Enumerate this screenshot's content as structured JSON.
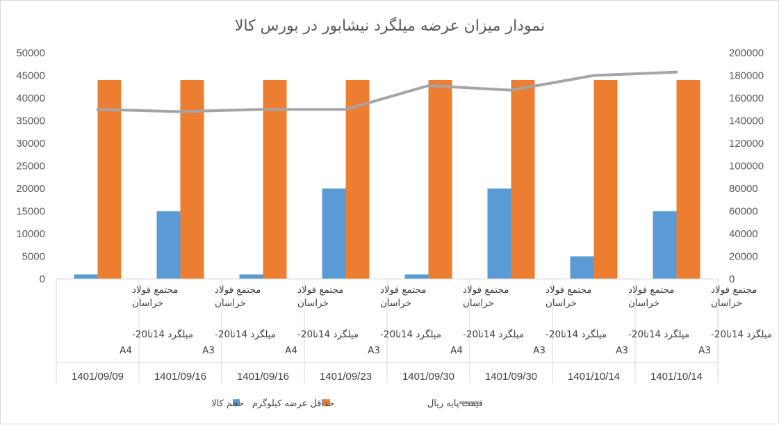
{
  "chart_data": {
    "type": "bar",
    "title": "نمودار میزان عرضه میلگرد نیشابور در بورس کالا",
    "categories": [
      {
        "company": "مجتمع فولاد خراسان",
        "product": "میلگرد 14تا20-",
        "grade": "A4",
        "date": "1401/09/09"
      },
      {
        "company": "مجتمع فولاد خراسان",
        "product": "میلگرد 14تا20-",
        "grade": "A3",
        "date": "1401/09/16"
      },
      {
        "company": "مجتمع فولاد خراسان",
        "product": "میلگرد 14تا20-",
        "grade": "A4",
        "date": "1401/09/16"
      },
      {
        "company": "مجتمع فولاد خراسان",
        "product": "میلگرد 14تا20-",
        "grade": "A3",
        "date": "1401/09/23"
      },
      {
        "company": "مجتمع فولاد خراسان",
        "product": "میلگرد 14تا20-",
        "grade": "A4",
        "date": "1401/09/30"
      },
      {
        "company": "مجتمع فولاد خراسان",
        "product": "میلگرد 14تا20-",
        "grade": "A3",
        "date": "1401/09/30"
      },
      {
        "company": "مجتمع فولاد خراسان",
        "product": "میلگرد 14تا20-",
        "grade": "A3",
        "date": "1401/10/14"
      },
      {
        "company": "مجتمع فولاد خراسان",
        "product": "میلگرد 14تا20-",
        "grade": "A3",
        "date": "1401/10/14"
      }
    ],
    "series": [
      {
        "name": "حجم کالا",
        "type": "bar",
        "axis": "left",
        "color": "#5b9bd5",
        "values": [
          1000,
          15000,
          1000,
          20000,
          1000,
          20000,
          5000,
          15000
        ]
      },
      {
        "name": "حداقل عرضه کیلوگرم",
        "type": "bar",
        "axis": "left",
        "color": "#ed7d31",
        "values": [
          44000,
          44000,
          44000,
          44000,
          44000,
          44000,
          44000,
          44000
        ]
      },
      {
        "name": "قیمت پایه ریال",
        "type": "line",
        "axis": "right",
        "color": "#a5a5a5",
        "values": [
          150000,
          148000,
          150000,
          150000,
          171000,
          167000,
          180000,
          183000
        ]
      }
    ],
    "left_axis": {
      "min": 0,
      "max": 50000,
      "step": 5000
    },
    "right_axis": {
      "min": 0,
      "max": 200000,
      "step": 20000
    },
    "grid": false,
    "legend_position": "bottom"
  }
}
